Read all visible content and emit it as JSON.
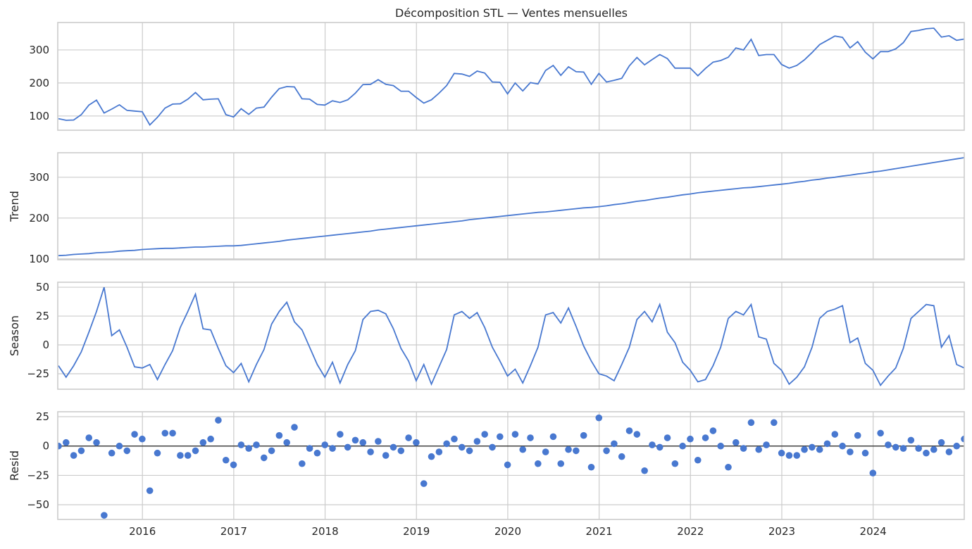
{
  "chart_data": [
    {
      "type": "line",
      "title": "Décomposition STL — Ventes mensuelles",
      "ylabel": "",
      "start": "2015-01",
      "end": "2024-12",
      "frequency": "monthly",
      "ylim": [
        57,
        383
      ],
      "yticks": [
        100,
        200,
        300
      ],
      "xticks": [
        "2016",
        "2017",
        "2018",
        "2019",
        "2020",
        "2021",
        "2022",
        "2023",
        "2024"
      ],
      "grid": true,
      "color": "#4878d0",
      "values": [
        92,
        87,
        88,
        104,
        133,
        148,
        109,
        121,
        134,
        117,
        115,
        113,
        73,
        96,
        124,
        136,
        137,
        151,
        171,
        149,
        151,
        152,
        104,
        97,
        122,
        105,
        124,
        127,
        157,
        183,
        189,
        188,
        152,
        151,
        135,
        133,
        146,
        141,
        149,
        169,
        195,
        196,
        210,
        196,
        192,
        175,
        175,
        156,
        139,
        149,
        169,
        192,
        229,
        227,
        220,
        236,
        230,
        203,
        202,
        167,
        200,
        176,
        201,
        197,
        238,
        253,
        223,
        249,
        234,
        233,
        196,
        229,
        203,
        208,
        214,
        252,
        277,
        255,
        271,
        286,
        274,
        245,
        245,
        245,
        222,
        244,
        263,
        268,
        278,
        306,
        300,
        332,
        283,
        286,
        286,
        256,
        245,
        253,
        270,
        292,
        316,
        329,
        342,
        338,
        306,
        325,
        293,
        273,
        295,
        295,
        303,
        322,
        356,
        359,
        364,
        366,
        339,
        343,
        329,
        333
      ]
    },
    {
      "type": "line",
      "ylabel": "Trend",
      "ylim": [
        98,
        360
      ],
      "yticks": [
        100,
        200,
        300
      ],
      "grid": true,
      "color": "#4878d0",
      "values": [
        108,
        109,
        111,
        112,
        113,
        115,
        116,
        117,
        119,
        120,
        121,
        123,
        124,
        125,
        126,
        126,
        127,
        128,
        129,
        129,
        130,
        131,
        132,
        132,
        133,
        135,
        137,
        139,
        141,
        143,
        146,
        148,
        150,
        152,
        154,
        156,
        158,
        160,
        162,
        164,
        166,
        168,
        171,
        173,
        175,
        177,
        179,
        181,
        183,
        185,
        187,
        189,
        191,
        193,
        196,
        198,
        200,
        202,
        204,
        206,
        208,
        210,
        212,
        214,
        215,
        217,
        219,
        221,
        223,
        225,
        226,
        228,
        230,
        233,
        235,
        238,
        241,
        243,
        246,
        249,
        251,
        254,
        257,
        259,
        262,
        264,
        266,
        268,
        270,
        272,
        274,
        275,
        277,
        279,
        281,
        283,
        285,
        288,
        290,
        293,
        295,
        298,
        300,
        303,
        305,
        308,
        310,
        313,
        315,
        318,
        321,
        324,
        327,
        330,
        333,
        336,
        339,
        342,
        345,
        348
      ]
    },
    {
      "type": "line",
      "ylabel": "Season",
      "ylim": [
        -38.4,
        54.3
      ],
      "yticks": [
        -25,
        0,
        25,
        50
      ],
      "grid": true,
      "color": "#4878d0",
      "values": [
        -18,
        -28,
        -18,
        -6,
        11,
        29,
        50,
        8,
        13,
        -2,
        -19,
        -20,
        -17,
        -30,
        -17,
        -5,
        15,
        29,
        44,
        14,
        13,
        -3,
        -18,
        -24,
        -16,
        -32,
        -17,
        -4,
        18,
        29,
        37,
        20,
        13,
        -2,
        -17,
        -28,
        -15,
        -33,
        -17,
        -5,
        22,
        29,
        30,
        27,
        14,
        -3,
        -14,
        -31,
        -17,
        -34,
        -19,
        -4,
        26,
        29,
        23,
        28,
        15,
        -2,
        -14,
        -27,
        -21,
        -33,
        -18,
        -2,
        26,
        28,
        19,
        32,
        16,
        -1,
        -14,
        -25,
        -27,
        -31,
        -17,
        -2,
        22,
        29,
        20,
        35,
        11,
        2,
        -15,
        -22,
        -32,
        -30,
        -18,
        -2,
        23,
        29,
        26,
        35,
        7,
        5,
        -16,
        -22,
        -34,
        -28,
        -19,
        -2,
        23,
        29,
        31,
        34,
        2,
        6,
        -16,
        -22,
        -35,
        -27,
        -20,
        -3,
        23,
        29,
        35,
        34,
        -2,
        8,
        -17,
        -20
      ]
    },
    {
      "type": "scatter",
      "ylabel": "Resid",
      "ylim": [
        -62.5,
        29.2
      ],
      "yticks": [
        -50,
        -25,
        0,
        25
      ],
      "grid": true,
      "zero_line": true,
      "color": "#4878d0",
      "values": [
        0,
        3,
        -8,
        -4,
        7,
        3,
        -59,
        -6,
        0,
        -4,
        10,
        6,
        -38,
        -6,
        11,
        11,
        -8,
        -8,
        -4,
        3,
        6,
        22,
        -12,
        -16,
        1,
        -2,
        1,
        -10,
        -4,
        9,
        3,
        16,
        -15,
        -2,
        -6,
        1,
        -2,
        10,
        -1,
        5,
        3,
        -5,
        4,
        -8,
        -1,
        -4,
        7,
        3,
        -32,
        -9,
        -5,
        2,
        6,
        -1,
        -4,
        4,
        10,
        -1,
        8,
        -16,
        10,
        -3,
        7,
        -15,
        -5,
        8,
        -15,
        -3,
        -4,
        9,
        -18,
        24,
        -4,
        2,
        -9,
        13,
        10,
        -21,
        1,
        -1,
        7,
        -15,
        0,
        6,
        -12,
        7,
        13,
        0,
        -18,
        3,
        -2,
        20,
        -3,
        1,
        20,
        -6,
        -8,
        -8,
        -3,
        -1,
        -3,
        2,
        10,
        0,
        -5,
        9,
        -6,
        -23,
        11,
        1,
        -1,
        -2,
        5,
        -2,
        -6,
        -3,
        3,
        -5,
        0,
        6
      ]
    }
  ]
}
